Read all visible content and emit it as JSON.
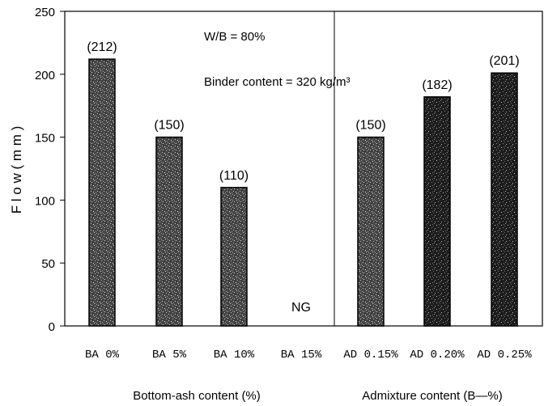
{
  "chart_data": {
    "type": "bar",
    "categories": [
      "BA 0%",
      "BA 5%",
      "BA 10%",
      "BA 15%",
      "AD 0.15%",
      "AD 0.20%",
      "AD 0.25%"
    ],
    "values": [
      212,
      150,
      110,
      null,
      150,
      182,
      201
    ],
    "bar_labels": [
      "(212)",
      "(150)",
      "(110)",
      "NG",
      "(150)",
      "(182)",
      "(201)"
    ],
    "ylabel": "F l o w  ( m m )",
    "ylim": [
      0,
      250
    ],
    "yticks": [
      0,
      50,
      100,
      150,
      200,
      250
    ],
    "group_labels": [
      "Bottom-ash content (%)",
      "Admixture content (B—%)"
    ],
    "annotations": [
      "W/B = 80%",
      "Binder content = 320 kg/m³"
    ],
    "grid": false,
    "divider_between_groups": true,
    "colors": {
      "bar_fill": "#4a4a4a",
      "bar_fill_dark": "#1e1e1e",
      "bar_speckle": "#d8d8d8",
      "axis": "#000000"
    }
  }
}
